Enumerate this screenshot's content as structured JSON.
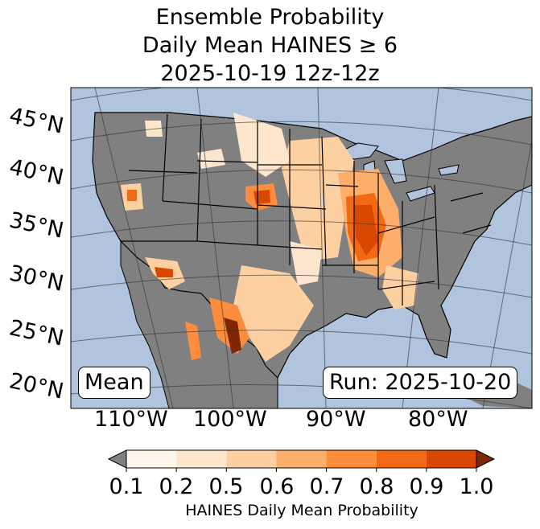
{
  "title": {
    "line1": "Ensemble Probability",
    "line2": "Daily Mean HAINES ≥ 6",
    "line3": "2025-10-19 12z-12z"
  },
  "lat_labels": [
    "45°N",
    "40°N",
    "35°N",
    "30°N",
    "25°N",
    "20°N"
  ],
  "lon_labels": [
    "110°W",
    "100°W",
    "90°W",
    "80°W"
  ],
  "boxes": {
    "stat": "Mean",
    "run": "Run: 2025-10-20"
  },
  "colorbar": {
    "ticks": [
      "0.1",
      "0.2",
      "0.5",
      "0.6",
      "0.7",
      "0.8",
      "0.9",
      "1.0"
    ],
    "colors": [
      "#fff5eb",
      "#fee6ce",
      "#fdd0a2",
      "#fdae6b",
      "#fd8d3c",
      "#f16913",
      "#d94801",
      "#7f2704"
    ],
    "under_color": "#808080",
    "label": "HAINES Daily Mean Probability"
  },
  "map_colors": {
    "ocean": "#b0c4de",
    "land": "#808080"
  }
}
